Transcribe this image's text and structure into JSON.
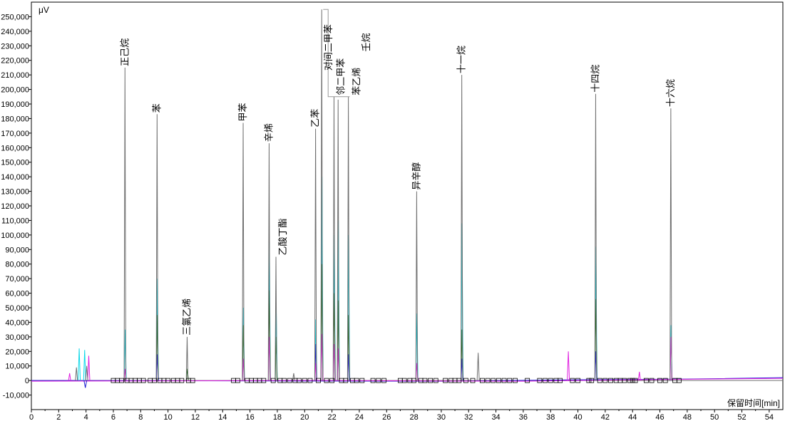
{
  "chart_data": {
    "type": "line",
    "ylabel": "μV",
    "xlabel": "保留时间[min]",
    "xlim": [
      0,
      55
    ],
    "ylim": [
      -20000,
      260000
    ],
    "x_ticks": [
      0,
      2,
      4,
      6,
      8,
      10,
      12,
      14,
      16,
      18,
      20,
      22,
      24,
      26,
      28,
      30,
      32,
      34,
      36,
      38,
      40,
      42,
      44,
      46,
      48,
      50,
      52,
      54
    ],
    "y_ticks": [
      -10000,
      0,
      10000,
      20000,
      30000,
      40000,
      50000,
      60000,
      70000,
      80000,
      90000,
      100000,
      110000,
      120000,
      130000,
      140000,
      150000,
      160000,
      170000,
      180000,
      190000,
      200000,
      210000,
      220000,
      230000,
      240000,
      250000
    ],
    "y_tick_labels": [
      "-10,000",
      "0",
      "10,000",
      "20,000",
      "30,000",
      "40,000",
      "50,000",
      "60,000",
      "70,000",
      "80,000",
      "90,000",
      "100,000",
      "110,000",
      "120,000",
      "130,000",
      "140,000",
      "150,000",
      "160,000",
      "170,000",
      "180,000",
      "190,000",
      "200,000",
      "210,000",
      "220,000",
      "230,000",
      "240,000",
      "250,000"
    ],
    "colors": {
      "gray": "#707070",
      "magenta": "#e020e0",
      "cyan": "#10d8e8",
      "green": "#207020",
      "blue": "#2020d0"
    },
    "peaks": [
      {
        "name": "正己烷",
        "x": 6.85,
        "height": 215000,
        "secondary": [
          {
            "color": "cyan",
            "height": 35000
          },
          {
            "color": "magenta",
            "height": 8000
          }
        ]
      },
      {
        "name": "苯",
        "x": 9.2,
        "height": 183000,
        "secondary": [
          {
            "color": "cyan",
            "height": 70000
          },
          {
            "color": "green",
            "height": 45000
          },
          {
            "color": "blue",
            "height": 18000
          }
        ]
      },
      {
        "name": "三氯乙烯",
        "x": 11.4,
        "height": 30000,
        "secondary": [
          {
            "color": "green",
            "height": 8000
          }
        ]
      },
      {
        "name": "甲苯",
        "x": 15.5,
        "height": 177000,
        "secondary": [
          {
            "color": "cyan",
            "height": 50000
          },
          {
            "color": "green",
            "height": 38000
          },
          {
            "color": "magenta",
            "height": 15000
          }
        ]
      },
      {
        "name": "辛烯",
        "x": 17.4,
        "height": 163000,
        "secondary": [
          {
            "color": "cyan",
            "height": 95000
          },
          {
            "color": "green",
            "height": 62000
          },
          {
            "color": "magenta",
            "height": 30000
          }
        ]
      },
      {
        "name": "乙酸丁酯",
        "x": 17.9,
        "height": 85000,
        "secondary": [
          {
            "color": "cyan",
            "height": 50000
          },
          {
            "color": "green",
            "height": 30000
          }
        ]
      },
      {
        "name": "乙苯",
        "x": 20.8,
        "height": 173000,
        "secondary": [
          {
            "color": "cyan",
            "height": 42000
          },
          {
            "color": "blue",
            "height": 25000
          },
          {
            "color": "magenta",
            "height": 12000
          }
        ]
      },
      {
        "name": "对间二甲苯",
        "x": 21.25,
        "height": 255000,
        "secondary": [
          {
            "color": "cyan",
            "height": 140000
          },
          {
            "color": "green",
            "height": 80000
          },
          {
            "color": "magenta",
            "height": 32000
          }
        ]
      },
      {
        "name": "邻二甲苯",
        "x": 22.15,
        "height": 195000,
        "secondary": [
          {
            "color": "cyan",
            "height": 100000
          },
          {
            "color": "green",
            "height": 60000
          },
          {
            "color": "magenta",
            "height": 25000
          }
        ]
      },
      {
        "name": "壬烷",
        "x": 22.45,
        "height": 193000,
        "secondary": [
          {
            "color": "cyan",
            "height": 110000
          },
          {
            "color": "green",
            "height": 55000
          },
          {
            "color": "magenta",
            "height": 22000
          }
        ]
      },
      {
        "name": "苯乙烯",
        "x": 23.2,
        "height": 195000,
        "secondary": [
          {
            "color": "cyan",
            "height": 100000
          },
          {
            "color": "green",
            "height": 45000
          },
          {
            "color": "blue",
            "height": 18000
          }
        ]
      },
      {
        "name": "异辛醇",
        "x": 28.2,
        "height": 130000,
        "secondary": [
          {
            "color": "cyan",
            "height": 46000
          },
          {
            "color": "magenta",
            "height": 12000
          }
        ]
      },
      {
        "name": "十一烷",
        "x": 31.5,
        "height": 210000,
        "secondary": [
          {
            "color": "cyan",
            "height": 108000
          },
          {
            "color": "green",
            "height": 35000
          },
          {
            "color": "blue",
            "height": 15000
          }
        ]
      },
      {
        "name": "十四烷",
        "x": 41.3,
        "height": 197000,
        "secondary": [
          {
            "color": "cyan",
            "height": 92000
          },
          {
            "color": "green",
            "height": 56000
          },
          {
            "color": "blue",
            "height": 20000
          }
        ]
      },
      {
        "name": "十六烷",
        "x": 46.8,
        "height": 187000,
        "secondary": [
          {
            "color": "cyan",
            "height": 38000
          },
          {
            "color": "magenta",
            "height": 30000
          }
        ]
      }
    ],
    "minor_peaks": [
      {
        "x": 3.5,
        "height": 22000,
        "color": "cyan"
      },
      {
        "x": 3.9,
        "height": 21000,
        "color": "cyan"
      },
      {
        "x": 4.2,
        "height": 17000,
        "color": "magenta"
      },
      {
        "x": 3.3,
        "height": 9000,
        "color": "gray"
      },
      {
        "x": 4.05,
        "height": 10000,
        "color": "gray"
      },
      {
        "x": 2.8,
        "height": 5000,
        "color": "magenta"
      },
      {
        "x": 19.2,
        "height": 5000,
        "color": "gray"
      },
      {
        "x": 32.7,
        "height": 19000,
        "color": "gray"
      },
      {
        "x": 39.3,
        "height": 20000,
        "color": "magenta"
      },
      {
        "x": 44.5,
        "height": 6000,
        "color": "magenta"
      }
    ],
    "baseline_markers_x": [
      6.0,
      6.3,
      6.6,
      7.0,
      7.3,
      7.6,
      7.9,
      8.2,
      8.7,
      9.0,
      9.4,
      9.7,
      10.0,
      10.4,
      10.7,
      11.0,
      11.5,
      11.8,
      14.8,
      15.1,
      15.8,
      16.1,
      16.4,
      16.7,
      17.0,
      17.7,
      18.2,
      18.5,
      18.9,
      19.3,
      19.6,
      20.0,
      20.4,
      21.0,
      21.6,
      22.0,
      22.7,
      23.0,
      23.5,
      23.8,
      24.2,
      25.0,
      25.4,
      25.8,
      27.0,
      27.3,
      27.7,
      28.0,
      28.5,
      28.8,
      29.2,
      29.6,
      30.3,
      30.7,
      31.0,
      31.3,
      31.8,
      32.3,
      33.0,
      33.4,
      33.8,
      34.2,
      34.6,
      35.0,
      35.4,
      36.3,
      37.2,
      37.6,
      38.0,
      38.4,
      38.7,
      39.6,
      40.0,
      40.8,
      41.0,
      41.6,
      42.0,
      42.4,
      42.8,
      43.1,
      43.4,
      43.8,
      44.0,
      44.2,
      45.0,
      45.4,
      46.0,
      46.4,
      47.1,
      47.4
    ],
    "annotation_bracket": {
      "from": 21.25,
      "to": 22.15,
      "top": 255000
    }
  }
}
